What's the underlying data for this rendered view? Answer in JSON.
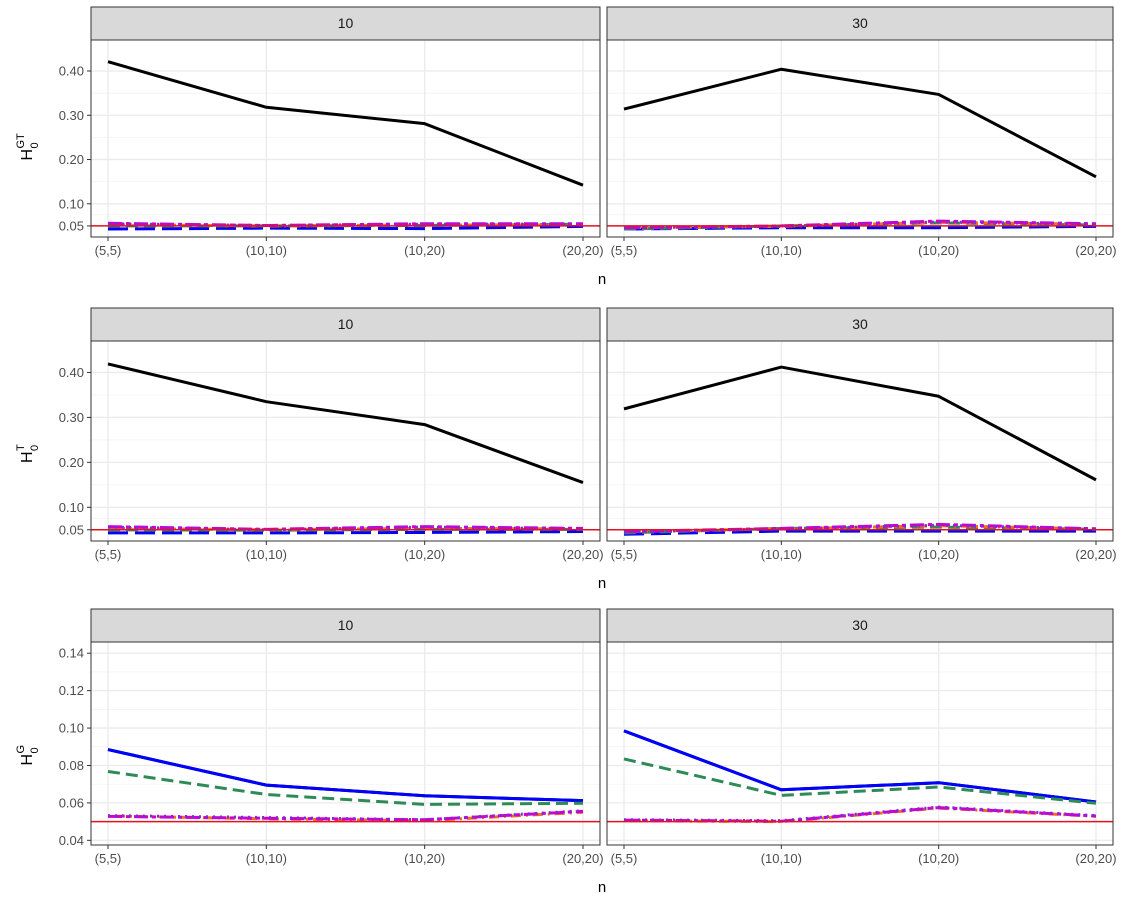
{
  "chart_data": [
    {
      "type": "line",
      "ylabel": "H0^GT",
      "ylabel_main": "H",
      "ylabel_sub": "0",
      "ylabel_sup": "GT",
      "xlabel": "n",
      "categories": [
        "(5,5)",
        "(10,10)",
        "(10,20)",
        "(20,20)"
      ],
      "ylim": [
        0.025,
        0.47
      ],
      "yticks": [
        0.05,
        0.1,
        0.2,
        0.3,
        0.4
      ],
      "ytick_labels": [
        "0.05",
        "0.10",
        "0.20",
        "0.30",
        "0.40"
      ],
      "reference_line": 0.05,
      "facets": [
        {
          "label": "10",
          "series": [
            {
              "color": "#000000",
              "dash": "solid",
              "values": [
                0.421,
                0.318,
                0.281,
                0.142
              ]
            },
            {
              "color": "#0000ff",
              "dash": "longdash",
              "values": [
                0.043,
                0.045,
                0.044,
                0.049
              ]
            },
            {
              "color": "#2e8b57",
              "dash": "dashed",
              "values": [
                0.05,
                0.05,
                0.051,
                0.054
              ]
            },
            {
              "color": "#f26c22",
              "dash": "dotdash",
              "values": [
                0.053,
                0.05,
                0.052,
                0.052
              ]
            },
            {
              "color": "#cc00cc",
              "dash": "twodash",
              "values": [
                0.056,
                0.051,
                0.055,
                0.055
              ]
            },
            {
              "color": "#7b2be2",
              "dash": "dotted",
              "values": [
                0.055,
                0.051,
                0.054,
                0.054
              ]
            }
          ]
        },
        {
          "label": "30",
          "series": [
            {
              "color": "#000000",
              "dash": "solid",
              "values": [
                0.314,
                0.404,
                0.347,
                0.161
              ]
            },
            {
              "color": "#0000ff",
              "dash": "longdash",
              "values": [
                0.043,
                0.046,
                0.046,
                0.049
              ]
            },
            {
              "color": "#2e8b57",
              "dash": "dashed",
              "values": [
                0.043,
                0.05,
                0.057,
                0.052
              ]
            },
            {
              "color": "#f26c22",
              "dash": "dotdash",
              "values": [
                0.046,
                0.049,
                0.058,
                0.054
              ]
            },
            {
              "color": "#cc00cc",
              "dash": "twodash",
              "values": [
                0.046,
                0.05,
                0.061,
                0.055
              ]
            },
            {
              "color": "#7b2be2",
              "dash": "dotted",
              "values": [
                0.046,
                0.049,
                0.059,
                0.054
              ]
            }
          ]
        }
      ]
    },
    {
      "type": "line",
      "ylabel": "H0^T",
      "ylabel_main": "H",
      "ylabel_sub": "0",
      "ylabel_sup": "T",
      "xlabel": "n",
      "categories": [
        "(5,5)",
        "(10,10)",
        "(10,20)",
        "(20,20)"
      ],
      "ylim": [
        0.025,
        0.47
      ],
      "yticks": [
        0.05,
        0.1,
        0.2,
        0.3,
        0.4
      ],
      "ytick_labels": [
        "0.05",
        "0.10",
        "0.20",
        "0.30",
        "0.40"
      ],
      "reference_line": 0.05,
      "facets": [
        {
          "label": "10",
          "series": [
            {
              "color": "#000000",
              "dash": "solid",
              "values": [
                0.419,
                0.335,
                0.284,
                0.155
              ]
            },
            {
              "color": "#0000ff",
              "dash": "longdash",
              "values": [
                0.043,
                0.043,
                0.044,
                0.046
              ]
            },
            {
              "color": "#2e8b57",
              "dash": "dashed",
              "values": [
                0.05,
                0.049,
                0.051,
                0.051
              ]
            },
            {
              "color": "#f26c22",
              "dash": "dotdash",
              "values": [
                0.053,
                0.05,
                0.053,
                0.052
              ]
            },
            {
              "color": "#cc00cc",
              "dash": "twodash",
              "values": [
                0.057,
                0.051,
                0.057,
                0.053
              ]
            },
            {
              "color": "#7b2be2",
              "dash": "dotted",
              "values": [
                0.056,
                0.05,
                0.056,
                0.052
              ]
            }
          ]
        },
        {
          "label": "30",
          "series": [
            {
              "color": "#000000",
              "dash": "solid",
              "values": [
                0.319,
                0.412,
                0.347,
                0.161
              ]
            },
            {
              "color": "#0000ff",
              "dash": "longdash",
              "values": [
                0.04,
                0.047,
                0.047,
                0.047
              ]
            },
            {
              "color": "#2e8b57",
              "dash": "dashed",
              "values": [
                0.043,
                0.053,
                0.056,
                0.051
              ]
            },
            {
              "color": "#f26c22",
              "dash": "dotdash",
              "values": [
                0.046,
                0.052,
                0.059,
                0.052
              ]
            },
            {
              "color": "#cc00cc",
              "dash": "twodash",
              "values": [
                0.046,
                0.053,
                0.062,
                0.052
              ]
            },
            {
              "color": "#7b2be2",
              "dash": "dotted",
              "values": [
                0.045,
                0.052,
                0.06,
                0.052
              ]
            }
          ]
        }
      ]
    },
    {
      "type": "line",
      "ylabel": "H0^G",
      "ylabel_main": "H",
      "ylabel_sub": "0",
      "ylabel_sup": "G",
      "xlabel": "n",
      "categories": [
        "(5,5)",
        "(10,10)",
        "(10,20)",
        "(20,20)"
      ],
      "ylim": [
        0.0375,
        0.146
      ],
      "yticks": [
        0.04,
        0.06,
        0.08,
        0.1,
        0.12,
        0.14
      ],
      "ytick_labels": [
        "0.04",
        "0.06",
        "0.08",
        "0.10",
        "0.12",
        "0.14"
      ],
      "reference_line": 0.05,
      "facets": [
        {
          "label": "10",
          "series": [
            {
              "color": "#000000",
              "dash": "solid",
              "values": [
                0.0885,
                0.0695,
                0.0638,
                0.0612
              ]
            },
            {
              "color": "#0000ff",
              "dash": "solid",
              "values": [
                0.0885,
                0.0695,
                0.0638,
                0.0612
              ]
            },
            {
              "color": "#2e8b57",
              "dash": "dashed",
              "values": [
                0.0768,
                0.0645,
                0.0592,
                0.0598
              ]
            },
            {
              "color": "#f26c22",
              "dash": "dotdash",
              "values": [
                0.053,
                0.0515,
                0.0505,
                0.055
              ]
            },
            {
              "color": "#cc00cc",
              "dash": "twodash",
              "values": [
                0.0528,
                0.0518,
                0.051,
                0.0555
              ]
            },
            {
              "color": "#7b2be2",
              "dash": "dotted",
              "values": [
                0.0532,
                0.0522,
                0.051,
                0.0558
              ]
            }
          ]
        },
        {
          "label": "30",
          "series": [
            {
              "color": "#000000",
              "dash": "solid",
              "values": [
                0.0985,
                0.067,
                0.0708,
                0.0605
              ]
            },
            {
              "color": "#0000ff",
              "dash": "solid",
              "values": [
                0.0985,
                0.067,
                0.0708,
                0.0605
              ]
            },
            {
              "color": "#2e8b57",
              "dash": "dashed",
              "values": [
                0.0835,
                0.064,
                0.0685,
                0.0598
              ]
            },
            {
              "color": "#f26c22",
              "dash": "dotdash",
              "values": [
                0.0505,
                0.05,
                0.0572,
                0.0528
              ]
            },
            {
              "color": "#cc00cc",
              "dash": "twodash",
              "values": [
                0.0508,
                0.0502,
                0.0575,
                0.053
              ]
            },
            {
              "color": "#7b2be2",
              "dash": "dotted",
              "values": [
                0.051,
                0.0505,
                0.0578,
                0.0532
              ]
            }
          ]
        }
      ]
    }
  ]
}
